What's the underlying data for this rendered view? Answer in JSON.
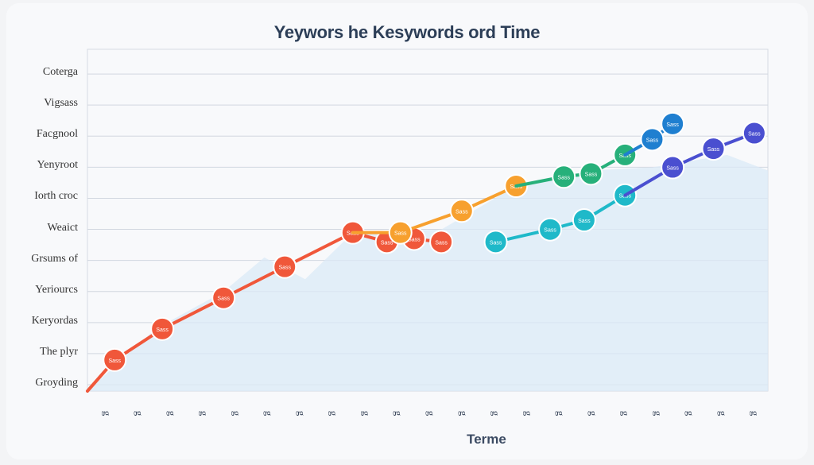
{
  "chart_data": {
    "type": "line",
    "title": "Yeywors he Kesywords ord Time",
    "xlabel": "Terme",
    "ylabel": "",
    "categories": [
      "Groyding",
      "The plyr",
      "Keryordas",
      "Yeriourcs",
      "Grsums of",
      "Weaict",
      "Iorth croc",
      "Yenyroot",
      "Facgnool",
      "Vigsass",
      "Coterga"
    ],
    "x_ticks": [
      "g",
      "g",
      "g",
      "g",
      "g",
      "g",
      "g",
      "g",
      "g",
      "g",
      "g",
      "g",
      "g",
      "g",
      "g",
      "g",
      "g",
      "g",
      "g",
      "g",
      "g"
    ],
    "series": [
      {
        "color": "#f0573a",
        "points": [
          [
            0,
            0
          ],
          [
            0.4,
            1.0
          ],
          [
            1.1,
            2.0
          ],
          [
            2.0,
            3.0
          ],
          [
            2.9,
            4.0
          ],
          [
            3.9,
            5.1
          ],
          [
            4.4,
            4.8
          ],
          [
            4.8,
            4.9
          ],
          [
            5.2,
            4.8
          ]
        ],
        "labels": [
          "",
          "Sass",
          "Sass",
          "Sass",
          "Sass",
          "Sass",
          "Sass",
          "Sass",
          "Sass"
        ]
      },
      {
        "color": "#f7a02e",
        "points": [
          [
            3.9,
            5.1
          ],
          [
            4.6,
            5.1
          ],
          [
            5.5,
            5.8
          ],
          [
            6.3,
            6.6
          ]
        ],
        "labels": [
          "",
          "Sass",
          "Sass",
          "Sass"
        ]
      },
      {
        "color": "#27b07a",
        "points": [
          [
            6.3,
            6.6
          ],
          [
            7.0,
            6.9
          ],
          [
            7.4,
            7.0
          ],
          [
            7.9,
            7.6
          ]
        ],
        "labels": [
          "",
          "Sass",
          "Sass",
          "Sass"
        ]
      },
      {
        "color": "#1fb9c9",
        "points": [
          [
            6.0,
            4.8
          ],
          [
            6.8,
            5.2
          ],
          [
            7.3,
            5.5
          ],
          [
            7.9,
            6.3
          ]
        ],
        "labels": [
          "Sass",
          "Sass",
          "Sass",
          "Sass"
        ]
      },
      {
        "color": "#1f7fd0",
        "points": [
          [
            7.9,
            7.6
          ],
          [
            8.3,
            8.1
          ],
          [
            8.6,
            8.6
          ]
        ],
        "labels": [
          "",
          "Sass",
          "Sass"
        ]
      },
      {
        "color": "#4a4fd0",
        "points": [
          [
            7.9,
            6.3
          ],
          [
            8.6,
            7.2
          ],
          [
            9.2,
            7.8
          ],
          [
            9.8,
            8.3
          ]
        ],
        "labels": [
          "",
          "Sass",
          "Sass",
          "Sass"
        ]
      }
    ],
    "grid": true,
    "xlim": [
      0,
      10
    ],
    "ylim": [
      0,
      11
    ]
  }
}
